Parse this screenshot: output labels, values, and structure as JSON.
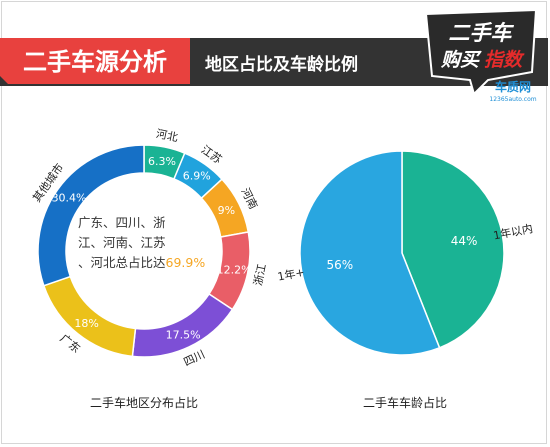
{
  "header": {
    "title": "二手车源分析",
    "subtitle": "地区占比及车龄比例",
    "logo_line1": "二手车",
    "logo_line2a": "购买",
    "logo_line2b": "指数",
    "logo_site": "车质网",
    "logo_url": "12365auto.com"
  },
  "colors": {
    "header_bg": "#333333",
    "title_red": "#e8413e",
    "logo_red": "#e52b2b",
    "logo_blue": "#1f8fd6"
  },
  "chart_data": [
    {
      "type": "pie",
      "variant": "donut",
      "caption": "二手车地区分布占比",
      "center_text": "广东、四川、浙江、河南、江苏、河北总占比达",
      "center_value": "69.9%",
      "slices": [
        {
          "label": "河北",
          "value": 6.3,
          "value_label": "6.3%",
          "color": "#1ab394"
        },
        {
          "label": "江苏",
          "value": 6.9,
          "value_label": "6.9%",
          "color": "#21a3dd"
        },
        {
          "label": "河南",
          "value": 9.0,
          "value_label": "9%",
          "color": "#f5a623"
        },
        {
          "label": "浙江",
          "value": 12.2,
          "value_label": "12.2%",
          "color": "#e95e67"
        },
        {
          "label": "四川",
          "value": 17.5,
          "value_label": "17.5%",
          "color": "#7d4fd6"
        },
        {
          "label": "广东",
          "value": 18.0,
          "value_label": "18%",
          "color": "#ebc11a"
        },
        {
          "label": "其他城市",
          "value": 30.4,
          "value_label": "30.4%",
          "color": "#1670c6"
        }
      ]
    },
    {
      "type": "pie",
      "caption": "二手车车龄占比",
      "slices": [
        {
          "label": "1年以内",
          "value": 44,
          "value_label": "44%",
          "color": "#1ab394"
        },
        {
          "label": "1年+",
          "value": 56,
          "value_label": "56%",
          "color": "#29a6e0"
        }
      ]
    }
  ]
}
